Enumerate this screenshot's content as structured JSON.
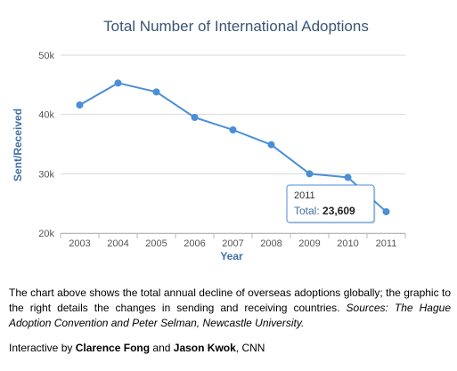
{
  "chart_data": {
    "type": "line",
    "title": "Total Number of International Adoptions",
    "xlabel": "Year",
    "ylabel": "Sent/Received",
    "categories": [
      "2003",
      "2004",
      "2005",
      "2006",
      "2007",
      "2008",
      "2009",
      "2010",
      "2011"
    ],
    "series": [
      {
        "values": [
          41600,
          45300,
          43800,
          39500,
          37400,
          34900,
          30000,
          29400,
          23609
        ]
      }
    ],
    "ylim": [
      20000,
      50000
    ],
    "yticks": [
      20000,
      30000,
      40000,
      50000
    ],
    "ytick_labels": [
      "20k",
      "30k",
      "40k",
      "50k"
    ],
    "grid": true,
    "tooltip": {
      "category": "2011",
      "label": "Total",
      "value_text": "23,609"
    },
    "colors": {
      "line": "#4a8ed8",
      "title": "#3a5575",
      "axis_label": "#3f6fa6",
      "tick_label": "#555555",
      "grid": "#d8d8d8"
    }
  },
  "caption": {
    "main": "The chart above shows the total annual decline of overseas adoptions globally; the graphic to the right details the changes in sending and receiving countries. ",
    "sources": "Sources: The Hague Adoption Convention and Peter Selman, Newcastle University."
  },
  "credit": {
    "prefix": "Interactive by ",
    "author1": "Clarence Fong",
    "and": " and ",
    "author2": "Jason Kwok",
    "suffix": ", CNN"
  }
}
